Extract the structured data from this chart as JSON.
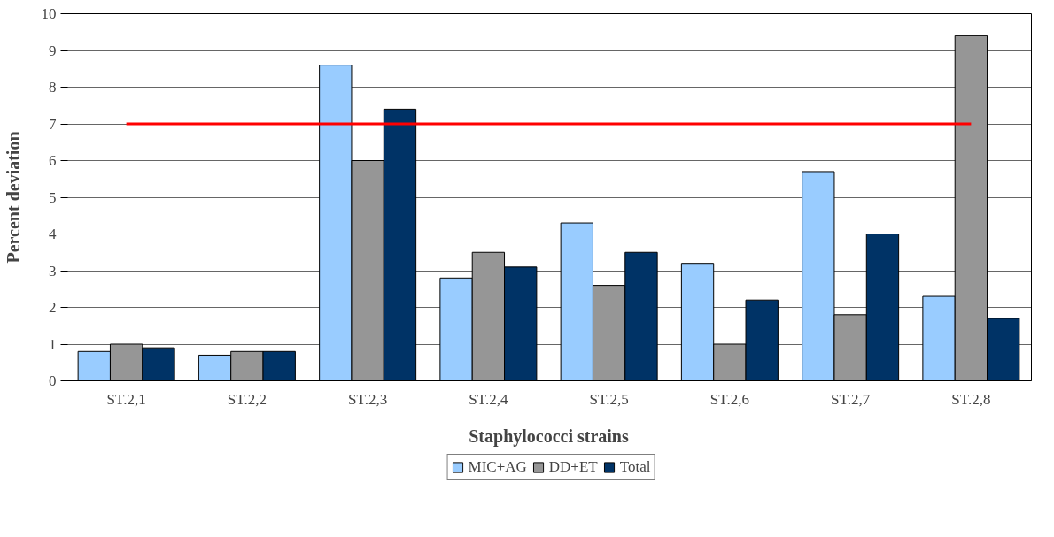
{
  "chart_data": {
    "type": "bar",
    "xlabel": "Staphylococci strains",
    "ylabel": "Percent deviation",
    "categories": [
      "ST.2,1",
      "ST.2,2",
      "ST.2,3",
      "ST.2,4",
      "ST.2,5",
      "ST.2,6",
      "ST.2,7",
      "ST.2,8"
    ],
    "series": [
      {
        "name": "MIC+AG",
        "color": "#99ccff",
        "values": [
          0.8,
          0.7,
          8.6,
          2.8,
          4.3,
          3.2,
          5.7,
          2.3
        ]
      },
      {
        "name": "DD+ET",
        "color": "#969696",
        "values": [
          1.0,
          0.8,
          6.0,
          3.5,
          2.6,
          1.0,
          1.8,
          9.4
        ]
      },
      {
        "name": "Total",
        "color": "#003366",
        "values": [
          0.9,
          0.8,
          7.4,
          3.1,
          3.5,
          2.2,
          4.0,
          1.7
        ]
      }
    ],
    "ylim": [
      0,
      10
    ],
    "yticks": [
      0,
      1,
      2,
      3,
      4,
      5,
      6,
      7,
      8,
      9,
      10
    ],
    "ref_lines": [
      {
        "axis": "y",
        "value": 7,
        "color": "#ff0000"
      }
    ],
    "grid": "y",
    "legend": "bottom"
  }
}
